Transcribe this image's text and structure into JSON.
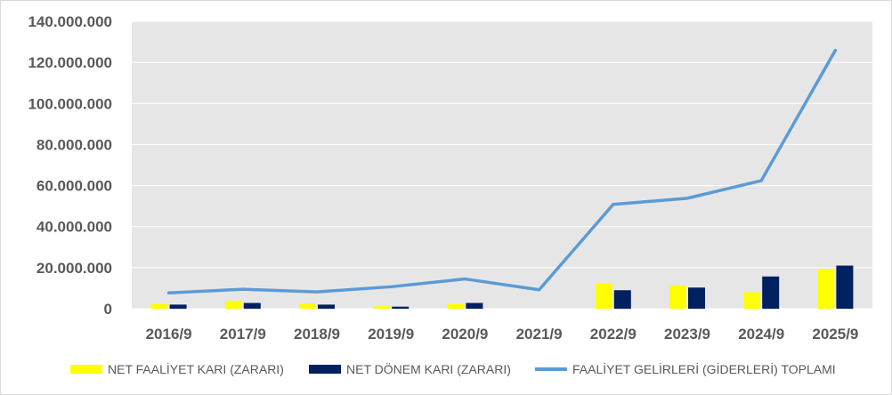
{
  "chart_data": {
    "type": "bar",
    "categories": [
      "2016/9",
      "2017/9",
      "2018/9",
      "2019/9",
      "2020/9",
      "2021/9",
      "2022/9",
      "2023/9",
      "2024/9",
      "2025/9"
    ],
    "series": [
      {
        "name": "NET FAALİYET KARI (ZARARI)",
        "type": "bar",
        "color": "#ffff00",
        "values": [
          2500000,
          3800000,
          2600000,
          1200000,
          2400000,
          0,
          12500000,
          11200000,
          8000000,
          19200000
        ]
      },
      {
        "name": "NET DÖNEM KARI (ZARARI)",
        "type": "bar",
        "color": "#002060",
        "values": [
          2000000,
          2800000,
          2000000,
          1000000,
          2800000,
          0,
          9000000,
          10300000,
          15700000,
          21000000
        ]
      },
      {
        "name": "FAALİYET GELİRLERİ (GİDERLERİ) TOPLAMI",
        "type": "line",
        "color": "#5b9bd5",
        "values": [
          7700000,
          9500000,
          8200000,
          10700000,
          14500000,
          9200000,
          50800000,
          53800000,
          62400000,
          125900000
        ]
      }
    ],
    "ylim": [
      0,
      140000000
    ],
    "yticks": [
      0,
      20000000,
      40000000,
      60000000,
      80000000,
      100000000,
      120000000,
      140000000
    ],
    "ytick_labels": [
      "0",
      "20.000.000",
      "40.000.000",
      "60.000.000",
      "80.000.000",
      "100.000.000",
      "120.000.000",
      "140.000.000"
    ],
    "grid": true,
    "legend_position": "bottom",
    "plot_background": "#e7e6e6"
  }
}
